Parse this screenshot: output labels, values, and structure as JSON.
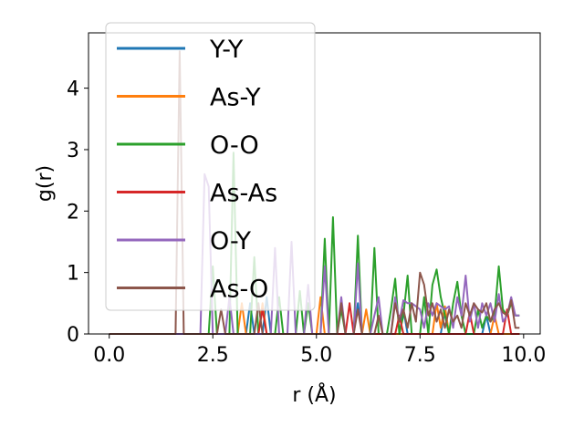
{
  "chart_data": {
    "type": "line",
    "xlabel": "r (Å)",
    "ylabel": "g(r)",
    "xlim": [
      -0.5,
      10.4
    ],
    "ylim": [
      0,
      4.9
    ],
    "xticks": [
      0.0,
      2.5,
      5.0,
      7.5,
      10.0
    ],
    "xtick_labels": [
      "0.0",
      "2.5",
      "5.0",
      "7.5",
      "10.0"
    ],
    "yticks": [
      0,
      1,
      2,
      3,
      4
    ],
    "ytick_labels": [
      "0",
      "1",
      "2",
      "3",
      "4"
    ],
    "grid": false,
    "legend_position": "top-left",
    "series": [
      {
        "name": "Y-Y",
        "color": "#1f77b4",
        "points": [
          [
            0,
            0
          ],
          [
            3.3,
            0
          ],
          [
            3.4,
            0.5
          ],
          [
            3.5,
            0
          ],
          [
            3.7,
            0
          ],
          [
            3.8,
            0.6
          ],
          [
            3.9,
            0
          ],
          [
            5.9,
            0
          ],
          [
            6.0,
            0.5
          ],
          [
            6.1,
            0
          ],
          [
            7.0,
            0
          ],
          [
            7.1,
            0.4
          ],
          [
            7.2,
            0
          ],
          [
            8.0,
            0
          ],
          [
            8.1,
            0.4
          ],
          [
            8.2,
            0
          ],
          [
            9.0,
            0
          ],
          [
            9.1,
            0.3
          ],
          [
            9.2,
            0
          ],
          [
            9.9,
            0
          ]
        ]
      },
      {
        "name": "As-Y",
        "color": "#ff7f0e",
        "points": [
          [
            0,
            0
          ],
          [
            3.1,
            0
          ],
          [
            3.2,
            0.5
          ],
          [
            3.3,
            0
          ],
          [
            3.6,
            0
          ],
          [
            3.7,
            0.5
          ],
          [
            3.8,
            0
          ],
          [
            5.0,
            0
          ],
          [
            5.1,
            0.6
          ],
          [
            5.2,
            0
          ],
          [
            6.1,
            0
          ],
          [
            6.2,
            0.4
          ],
          [
            6.3,
            0
          ],
          [
            7.8,
            0
          ],
          [
            7.9,
            0.5
          ],
          [
            8.0,
            0.1
          ],
          [
            8.1,
            0.45
          ],
          [
            8.2,
            0
          ],
          [
            9.2,
            0
          ],
          [
            9.3,
            0.3
          ],
          [
            9.4,
            0
          ],
          [
            9.9,
            0
          ]
        ]
      },
      {
        "name": "O-O",
        "color": "#2ca02c",
        "points": [
          [
            0,
            0
          ],
          [
            2.4,
            0
          ],
          [
            2.5,
            1.1
          ],
          [
            2.6,
            0
          ],
          [
            2.9,
            0
          ],
          [
            3.0,
            2.95
          ],
          [
            3.1,
            0
          ],
          [
            3.4,
            0
          ],
          [
            3.5,
            1.25
          ],
          [
            3.6,
            0
          ],
          [
            4.0,
            0
          ],
          [
            4.1,
            0.6
          ],
          [
            4.2,
            0
          ],
          [
            4.5,
            0
          ],
          [
            4.6,
            0.7
          ],
          [
            4.7,
            0
          ],
          [
            4.8,
            0.5
          ],
          [
            4.9,
            0
          ],
          [
            5.1,
            0
          ],
          [
            5.2,
            1.55
          ],
          [
            5.3,
            0
          ],
          [
            5.4,
            1.9
          ],
          [
            5.5,
            0
          ],
          [
            5.6,
            0.4
          ],
          [
            5.7,
            0
          ],
          [
            5.9,
            0
          ],
          [
            6.0,
            1.6
          ],
          [
            6.1,
            0
          ],
          [
            6.3,
            0
          ],
          [
            6.4,
            1.4
          ],
          [
            6.5,
            0
          ],
          [
            6.7,
            0
          ],
          [
            6.8,
            0.4
          ],
          [
            6.9,
            0.9
          ],
          [
            7.0,
            0
          ],
          [
            7.1,
            0.3
          ],
          [
            7.2,
            0.95
          ],
          [
            7.3,
            0
          ],
          [
            7.5,
            0
          ],
          [
            7.6,
            0.6
          ],
          [
            7.7,
            0
          ],
          [
            7.8,
            0.8
          ],
          [
            7.9,
            1.05
          ],
          [
            8.0,
            0.6
          ],
          [
            8.1,
            0.3
          ],
          [
            8.2,
            0
          ],
          [
            8.3,
            0.5
          ],
          [
            8.4,
            0.85
          ],
          [
            8.5,
            0.3
          ],
          [
            8.6,
            0
          ],
          [
            8.8,
            0
          ],
          [
            8.9,
            0.4
          ],
          [
            9.0,
            0.1
          ],
          [
            9.1,
            0.3
          ],
          [
            9.2,
            0.2
          ],
          [
            9.3,
            0.3
          ],
          [
            9.4,
            1.1
          ],
          [
            9.5,
            0.4
          ],
          [
            9.6,
            0.3
          ],
          [
            9.7,
            0.5
          ],
          [
            9.8,
            0.3
          ],
          [
            9.9,
            0.3
          ]
        ]
      },
      {
        "name": "As-As",
        "color": "#d62728",
        "points": [
          [
            0,
            0
          ],
          [
            3.6,
            0
          ],
          [
            3.7,
            0.4
          ],
          [
            3.8,
            0
          ],
          [
            5.7,
            0
          ],
          [
            5.8,
            0.5
          ],
          [
            5.9,
            0
          ],
          [
            6.9,
            0
          ],
          [
            7.0,
            0.3
          ],
          [
            7.1,
            0
          ],
          [
            8.6,
            0
          ],
          [
            8.7,
            0.35
          ],
          [
            8.8,
            0
          ],
          [
            9.5,
            0
          ],
          [
            9.6,
            0.4
          ],
          [
            9.7,
            0
          ],
          [
            9.9,
            0
          ]
        ]
      },
      {
        "name": "O-Y",
        "color": "#9467bd",
        "points": [
          [
            0,
            0
          ],
          [
            2.2,
            0
          ],
          [
            2.3,
            2.6
          ],
          [
            2.4,
            2.4
          ],
          [
            2.5,
            0
          ],
          [
            2.8,
            0
          ],
          [
            2.9,
            0.6
          ],
          [
            3.0,
            0
          ],
          [
            3.9,
            0
          ],
          [
            4.0,
            1.4
          ],
          [
            4.1,
            0
          ],
          [
            4.3,
            0
          ],
          [
            4.4,
            1.5
          ],
          [
            4.5,
            0
          ],
          [
            4.7,
            0
          ],
          [
            4.8,
            0.8
          ],
          [
            4.9,
            0
          ],
          [
            5.1,
            0
          ],
          [
            5.2,
            1.1
          ],
          [
            5.3,
            0
          ],
          [
            5.5,
            0
          ],
          [
            5.6,
            0.6
          ],
          [
            5.7,
            0
          ],
          [
            5.9,
            0
          ],
          [
            6.0,
            1.15
          ],
          [
            6.1,
            0
          ],
          [
            6.3,
            0
          ],
          [
            6.4,
            0.3
          ],
          [
            6.5,
            0.6
          ],
          [
            6.6,
            0
          ],
          [
            6.8,
            0
          ],
          [
            6.9,
            0.6
          ],
          [
            7.0,
            0.2
          ],
          [
            7.1,
            0.55
          ],
          [
            7.2,
            0.5
          ],
          [
            7.3,
            0.5
          ],
          [
            7.4,
            0.45
          ],
          [
            7.5,
            0.4
          ],
          [
            7.6,
            0.1
          ],
          [
            7.7,
            0.5
          ],
          [
            7.8,
            0.3
          ],
          [
            7.9,
            0.5
          ],
          [
            8.0,
            0.45
          ],
          [
            8.1,
            0.4
          ],
          [
            8.2,
            0.45
          ],
          [
            8.3,
            0.1
          ],
          [
            8.4,
            0.6
          ],
          [
            8.5,
            0.3
          ],
          [
            8.6,
            0.95
          ],
          [
            8.7,
            0.2
          ],
          [
            8.8,
            0.5
          ],
          [
            8.9,
            0.1
          ],
          [
            9.0,
            0.5
          ],
          [
            9.1,
            0.3
          ],
          [
            9.2,
            0.5
          ],
          [
            9.3,
            0.2
          ],
          [
            9.4,
            0.65
          ],
          [
            9.5,
            0.2
          ],
          [
            9.6,
            0.3
          ],
          [
            9.7,
            0.6
          ],
          [
            9.8,
            0.3
          ],
          [
            9.9,
            0.3
          ]
        ]
      },
      {
        "name": "As-O",
        "color": "#8c564b",
        "points": [
          [
            0,
            0
          ],
          [
            1.6,
            0
          ],
          [
            1.7,
            4.6
          ],
          [
            1.8,
            0
          ],
          [
            2.6,
            0
          ],
          [
            2.7,
            0.4
          ],
          [
            2.8,
            0
          ],
          [
            3.5,
            0
          ],
          [
            3.6,
            0.5
          ],
          [
            3.7,
            0
          ],
          [
            5.5,
            0
          ],
          [
            5.6,
            0.5
          ],
          [
            5.7,
            0
          ],
          [
            5.9,
            0
          ],
          [
            6.0,
            0.4
          ],
          [
            6.1,
            0
          ],
          [
            6.4,
            0
          ],
          [
            6.5,
            0.3
          ],
          [
            6.6,
            0
          ],
          [
            6.8,
            0
          ],
          [
            6.9,
            0.5
          ],
          [
            7.0,
            0.2
          ],
          [
            7.1,
            0.4
          ],
          [
            7.2,
            0.1
          ],
          [
            7.3,
            0.5
          ],
          [
            7.4,
            0.2
          ],
          [
            7.5,
            1.0
          ],
          [
            7.6,
            0.8
          ],
          [
            7.7,
            0.3
          ],
          [
            7.8,
            0.5
          ],
          [
            7.9,
            0.2
          ],
          [
            8.0,
            0.4
          ],
          [
            8.1,
            0.1
          ],
          [
            8.2,
            0.4
          ],
          [
            8.3,
            0.2
          ],
          [
            8.4,
            0.3
          ],
          [
            8.5,
            0.1
          ],
          [
            8.6,
            0.5
          ],
          [
            8.7,
            0.3
          ],
          [
            8.8,
            0.5
          ],
          [
            8.9,
            0.4
          ],
          [
            9.0,
            0.35
          ],
          [
            9.1,
            0.5
          ],
          [
            9.2,
            0.2
          ],
          [
            9.3,
            0.4
          ],
          [
            9.4,
            0.5
          ],
          [
            9.5,
            0.35
          ],
          [
            9.6,
            0.3
          ],
          [
            9.7,
            0.55
          ],
          [
            9.8,
            0.1
          ],
          [
            9.9,
            0.1
          ]
        ]
      }
    ]
  }
}
